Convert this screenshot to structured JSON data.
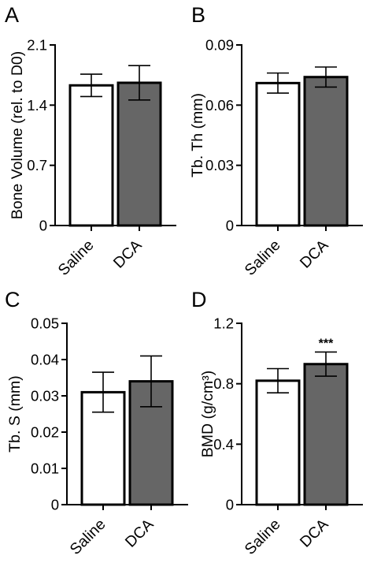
{
  "chart_data": [
    {
      "type": "bar",
      "panel": "A",
      "ylabel": "Bone Volume (rel. to D0)",
      "ylim": [
        0,
        2.1
      ],
      "yticks": [
        "0",
        "0.7",
        "1.4",
        "2.1"
      ],
      "categories": [
        "Saline",
        "DCA"
      ],
      "values": [
        1.63,
        1.66
      ],
      "errors": [
        0.13,
        0.2
      ],
      "annotations": [
        "",
        ""
      ],
      "bar_colors": [
        "#ffffff",
        "#666666"
      ]
    },
    {
      "type": "bar",
      "panel": "B",
      "ylabel": "Tb. Th (mm)",
      "ylim": [
        0,
        0.09
      ],
      "yticks": [
        "0",
        "0.03",
        "0.06",
        "0.09"
      ],
      "categories": [
        "Saline",
        "DCA"
      ],
      "values": [
        0.071,
        0.074
      ],
      "errors": [
        0.005,
        0.005
      ],
      "annotations": [
        "",
        ""
      ],
      "bar_colors": [
        "#ffffff",
        "#666666"
      ]
    },
    {
      "type": "bar",
      "panel": "C",
      "ylabel": "Tb. S (mm)",
      "ylim": [
        0,
        0.05
      ],
      "yticks": [
        "0",
        "0.01",
        "0.02",
        "0.03",
        "0.04",
        "0.05"
      ],
      "categories": [
        "Saline",
        "DCA"
      ],
      "values": [
        0.031,
        0.034
      ],
      "errors": [
        0.0055,
        0.007
      ],
      "annotations": [
        "",
        ""
      ],
      "bar_colors": [
        "#ffffff",
        "#666666"
      ]
    },
    {
      "type": "bar",
      "panel": "D",
      "ylabel": "BMD (g/cm³)",
      "ylim": [
        0,
        1.2
      ],
      "yticks": [
        "0",
        "0.4",
        "0.8",
        "1.2"
      ],
      "categories": [
        "Saline",
        "DCA"
      ],
      "values": [
        0.82,
        0.93
      ],
      "errors": [
        0.08,
        0.08
      ],
      "annotations": [
        "",
        "***"
      ],
      "bar_colors": [
        "#ffffff",
        "#666666"
      ]
    }
  ]
}
